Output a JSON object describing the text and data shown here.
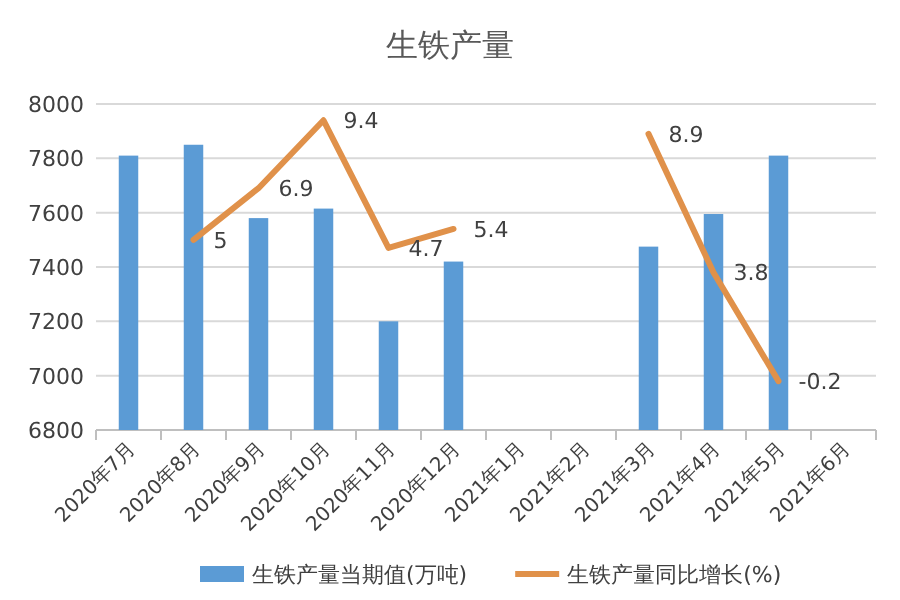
{
  "chart_data": {
    "type": "bar",
    "title": "生铁产量",
    "categories": [
      "2020年7月",
      "2020年8月",
      "2020年9月",
      "2020年10月",
      "2020年11月",
      "2020年12月",
      "2021年1月",
      "2021年2月",
      "2021年3月",
      "2021年4月",
      "2021年5月",
      "2021年6月"
    ],
    "series": [
      {
        "name": "生铁产量当期值(万吨)",
        "color": "#5b9bd5",
        "values": [
          7810,
          7850,
          7580,
          7615,
          7200,
          7420,
          null,
          null,
          7475,
          7595,
          7810,
          null
        ]
      },
      {
        "name": "生铁产量同比增长(%)",
        "type": "line",
        "axis": "y2",
        "color": "#e0914a",
        "values": [
          null,
          5,
          6.9,
          9.4,
          4.7,
          5.4,
          null,
          null,
          8.9,
          3.8,
          -0.2,
          null
        ],
        "value_labels": [
          null,
          "5",
          "6.9",
          "9.4",
          "4.7",
          "5.4",
          null,
          null,
          "8.9",
          "3.8",
          "-0.2",
          null
        ]
      }
    ],
    "ylim": [
      6800,
      8000
    ],
    "yticks": [
      6800,
      7000,
      7200,
      7400,
      7600,
      7800,
      8000
    ],
    "y2lim": [
      -2,
      10
    ],
    "grid": "y",
    "legend": "bottom",
    "line_style": "solid",
    "marker": "none"
  }
}
